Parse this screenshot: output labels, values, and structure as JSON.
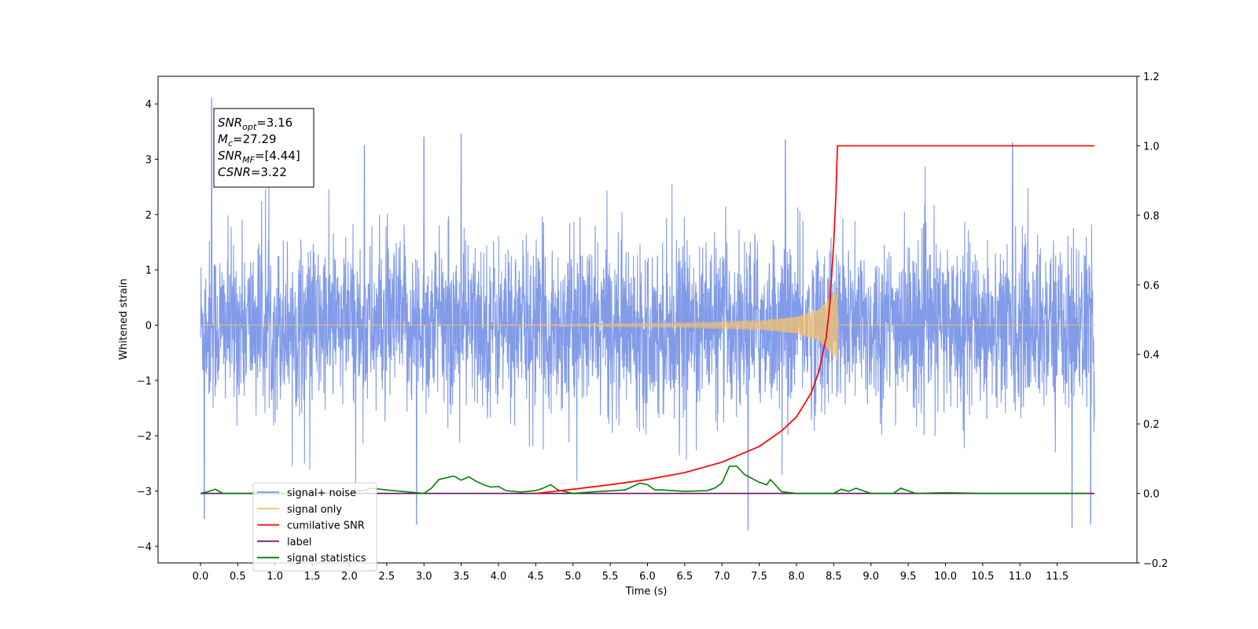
{
  "chart_data": {
    "type": "line",
    "title": "",
    "xlabel": "Time (s)",
    "ylabel": "Whitened strain",
    "y2label": "",
    "xlim": [
      -0.57,
      12.57
    ],
    "ylim": [
      -4.3,
      4.5
    ],
    "y2lim": [
      -0.2,
      1.2
    ],
    "x_ticks": [
      0.0,
      0.5,
      1.0,
      1.5,
      2.0,
      2.5,
      3.0,
      3.5,
      4.0,
      4.5,
      5.0,
      5.5,
      6.0,
      6.5,
      7.0,
      7.5,
      8.0,
      8.5,
      9.0,
      9.5,
      10.0,
      10.5,
      11.0,
      11.5
    ],
    "x_tick_labels": [
      "0.0",
      "0.5",
      "1.0",
      "1.5",
      "2.0",
      "2.5",
      "3.0",
      "3.5",
      "4.0",
      "4.5",
      "5.0",
      "5.5",
      "6.0",
      "6.5",
      "7.0",
      "7.5",
      "8.0",
      "8.5",
      "9.0",
      "9.5",
      "10.0",
      "10.5",
      "11.0",
      "11.5"
    ],
    "y_ticks": [
      -4,
      -3,
      -2,
      -1,
      0,
      1,
      2,
      3,
      4
    ],
    "y_tick_labels": [
      "−4",
      "−3",
      "−2",
      "−1",
      "0",
      "1",
      "2",
      "3",
      "4"
    ],
    "y2_ticks": [
      -0.2,
      0.0,
      0.2,
      0.4,
      0.6,
      0.8,
      1.0,
      1.2
    ],
    "y2_tick_labels": [
      "−0.2",
      "0.0",
      "0.2",
      "0.4",
      "0.6",
      "0.8",
      "1.0",
      "1.2"
    ],
    "grid": false,
    "legend_position": "lower-left",
    "series": [
      {
        "name": "signal+ noise",
        "axis": "left",
        "color": "#7b96e8",
        "description_range": [
          -3.7,
          4.1
        ],
        "x_range": [
          0.0,
          12.0
        ],
        "notable_peaks": [
          {
            "x": 0.15,
            "y": 4.1
          },
          {
            "x": 2.2,
            "y": 3.25
          },
          {
            "x": 3.0,
            "y": 3.4
          },
          {
            "x": 3.5,
            "y": 3.45
          },
          {
            "x": 7.85,
            "y": 3.35
          },
          {
            "x": 10.9,
            "y": 3.3
          },
          {
            "x": 7.35,
            "y": -3.7
          },
          {
            "x": 11.7,
            "y": -3.65
          },
          {
            "x": 11.95,
            "y": -3.6
          },
          {
            "x": 2.9,
            "y": -3.6
          },
          {
            "x": 0.05,
            "y": -3.5
          }
        ]
      },
      {
        "name": "signal only",
        "axis": "left",
        "color": "#f5c26b",
        "x": [
          0.0,
          3.0,
          5.0,
          6.5,
          7.5,
          8.0,
          8.3,
          8.45,
          8.55,
          8.56,
          12.0
        ],
        "amplitude": [
          0.0,
          0.0,
          0.02,
          0.04,
          0.08,
          0.15,
          0.28,
          0.5,
          0.65,
          0.0,
          0.0
        ]
      },
      {
        "name": "cumilative SNR",
        "axis": "right",
        "color": "#ff0000",
        "x": [
          4.5,
          5.0,
          5.5,
          6.0,
          6.5,
          7.0,
          7.5,
          7.8,
          8.0,
          8.2,
          8.3,
          8.4,
          8.45,
          8.5,
          8.53,
          8.55,
          8.56,
          12.0
        ],
        "values": [
          0.0,
          0.012,
          0.025,
          0.04,
          0.06,
          0.09,
          0.135,
          0.18,
          0.22,
          0.29,
          0.35,
          0.45,
          0.55,
          0.72,
          0.86,
          1.0,
          1.0,
          1.0
        ]
      },
      {
        "name": "label",
        "axis": "right",
        "color": "#6a0d6a",
        "x": [
          0.0,
          12.0
        ],
        "values": [
          0.0,
          0.0
        ]
      },
      {
        "name": "signal statistics",
        "axis": "right",
        "color": "#008000",
        "x": [
          0.0,
          0.1,
          0.2,
          0.3,
          2.0,
          2.3,
          2.5,
          2.7,
          3.0,
          3.1,
          3.2,
          3.4,
          3.5,
          3.6,
          3.7,
          3.8,
          3.9,
          4.0,
          4.1,
          4.3,
          4.5,
          4.6,
          4.7,
          4.8,
          5.0,
          5.3,
          5.7,
          5.9,
          6.0,
          6.1,
          6.2,
          6.5,
          6.8,
          6.9,
          7.0,
          7.1,
          7.2,
          7.3,
          7.5,
          7.6,
          7.65,
          7.8,
          8.0,
          8.5,
          8.6,
          8.7,
          8.8,
          9.0,
          9.3,
          9.4,
          9.6,
          10.0,
          10.5,
          11.0,
          11.9
        ],
        "values": [
          0.0,
          0.005,
          0.012,
          0.0,
          0.0,
          0.015,
          0.01,
          0.006,
          0.0,
          0.015,
          0.04,
          0.05,
          0.038,
          0.048,
          0.035,
          0.025,
          0.018,
          0.02,
          0.008,
          0.004,
          0.008,
          0.015,
          0.025,
          0.01,
          0.0,
          0.005,
          0.01,
          0.03,
          0.025,
          0.01,
          0.01,
          0.006,
          0.008,
          0.015,
          0.03,
          0.078,
          0.078,
          0.055,
          0.032,
          0.025,
          0.04,
          0.005,
          0.0,
          0.0,
          0.012,
          0.006,
          0.015,
          0.0,
          0.0,
          0.015,
          0.0,
          0.002,
          0.0,
          0.0,
          0.0
        ]
      }
    ],
    "annotation": {
      "lines": [
        {
          "main": "SNR",
          "sub": "opt",
          "value": "=3.16"
        },
        {
          "main": "M",
          "sub": "c",
          "value": "=27.29"
        },
        {
          "main": "SNR",
          "sub": "MF",
          "value": "=[4.44]"
        },
        {
          "main": "CSNR",
          "sub": "",
          "value": "=3.22"
        }
      ],
      "position": "top-left"
    },
    "legend": [
      {
        "label": "signal+ noise",
        "color": "#7b96e8"
      },
      {
        "label": "signal only",
        "color": "#f5c26b"
      },
      {
        "label": "cumilative SNR",
        "color": "#ff0000"
      },
      {
        "label": "label",
        "color": "#6a0d6a"
      },
      {
        "label": "signal statistics",
        "color": "#008000"
      }
    ]
  }
}
